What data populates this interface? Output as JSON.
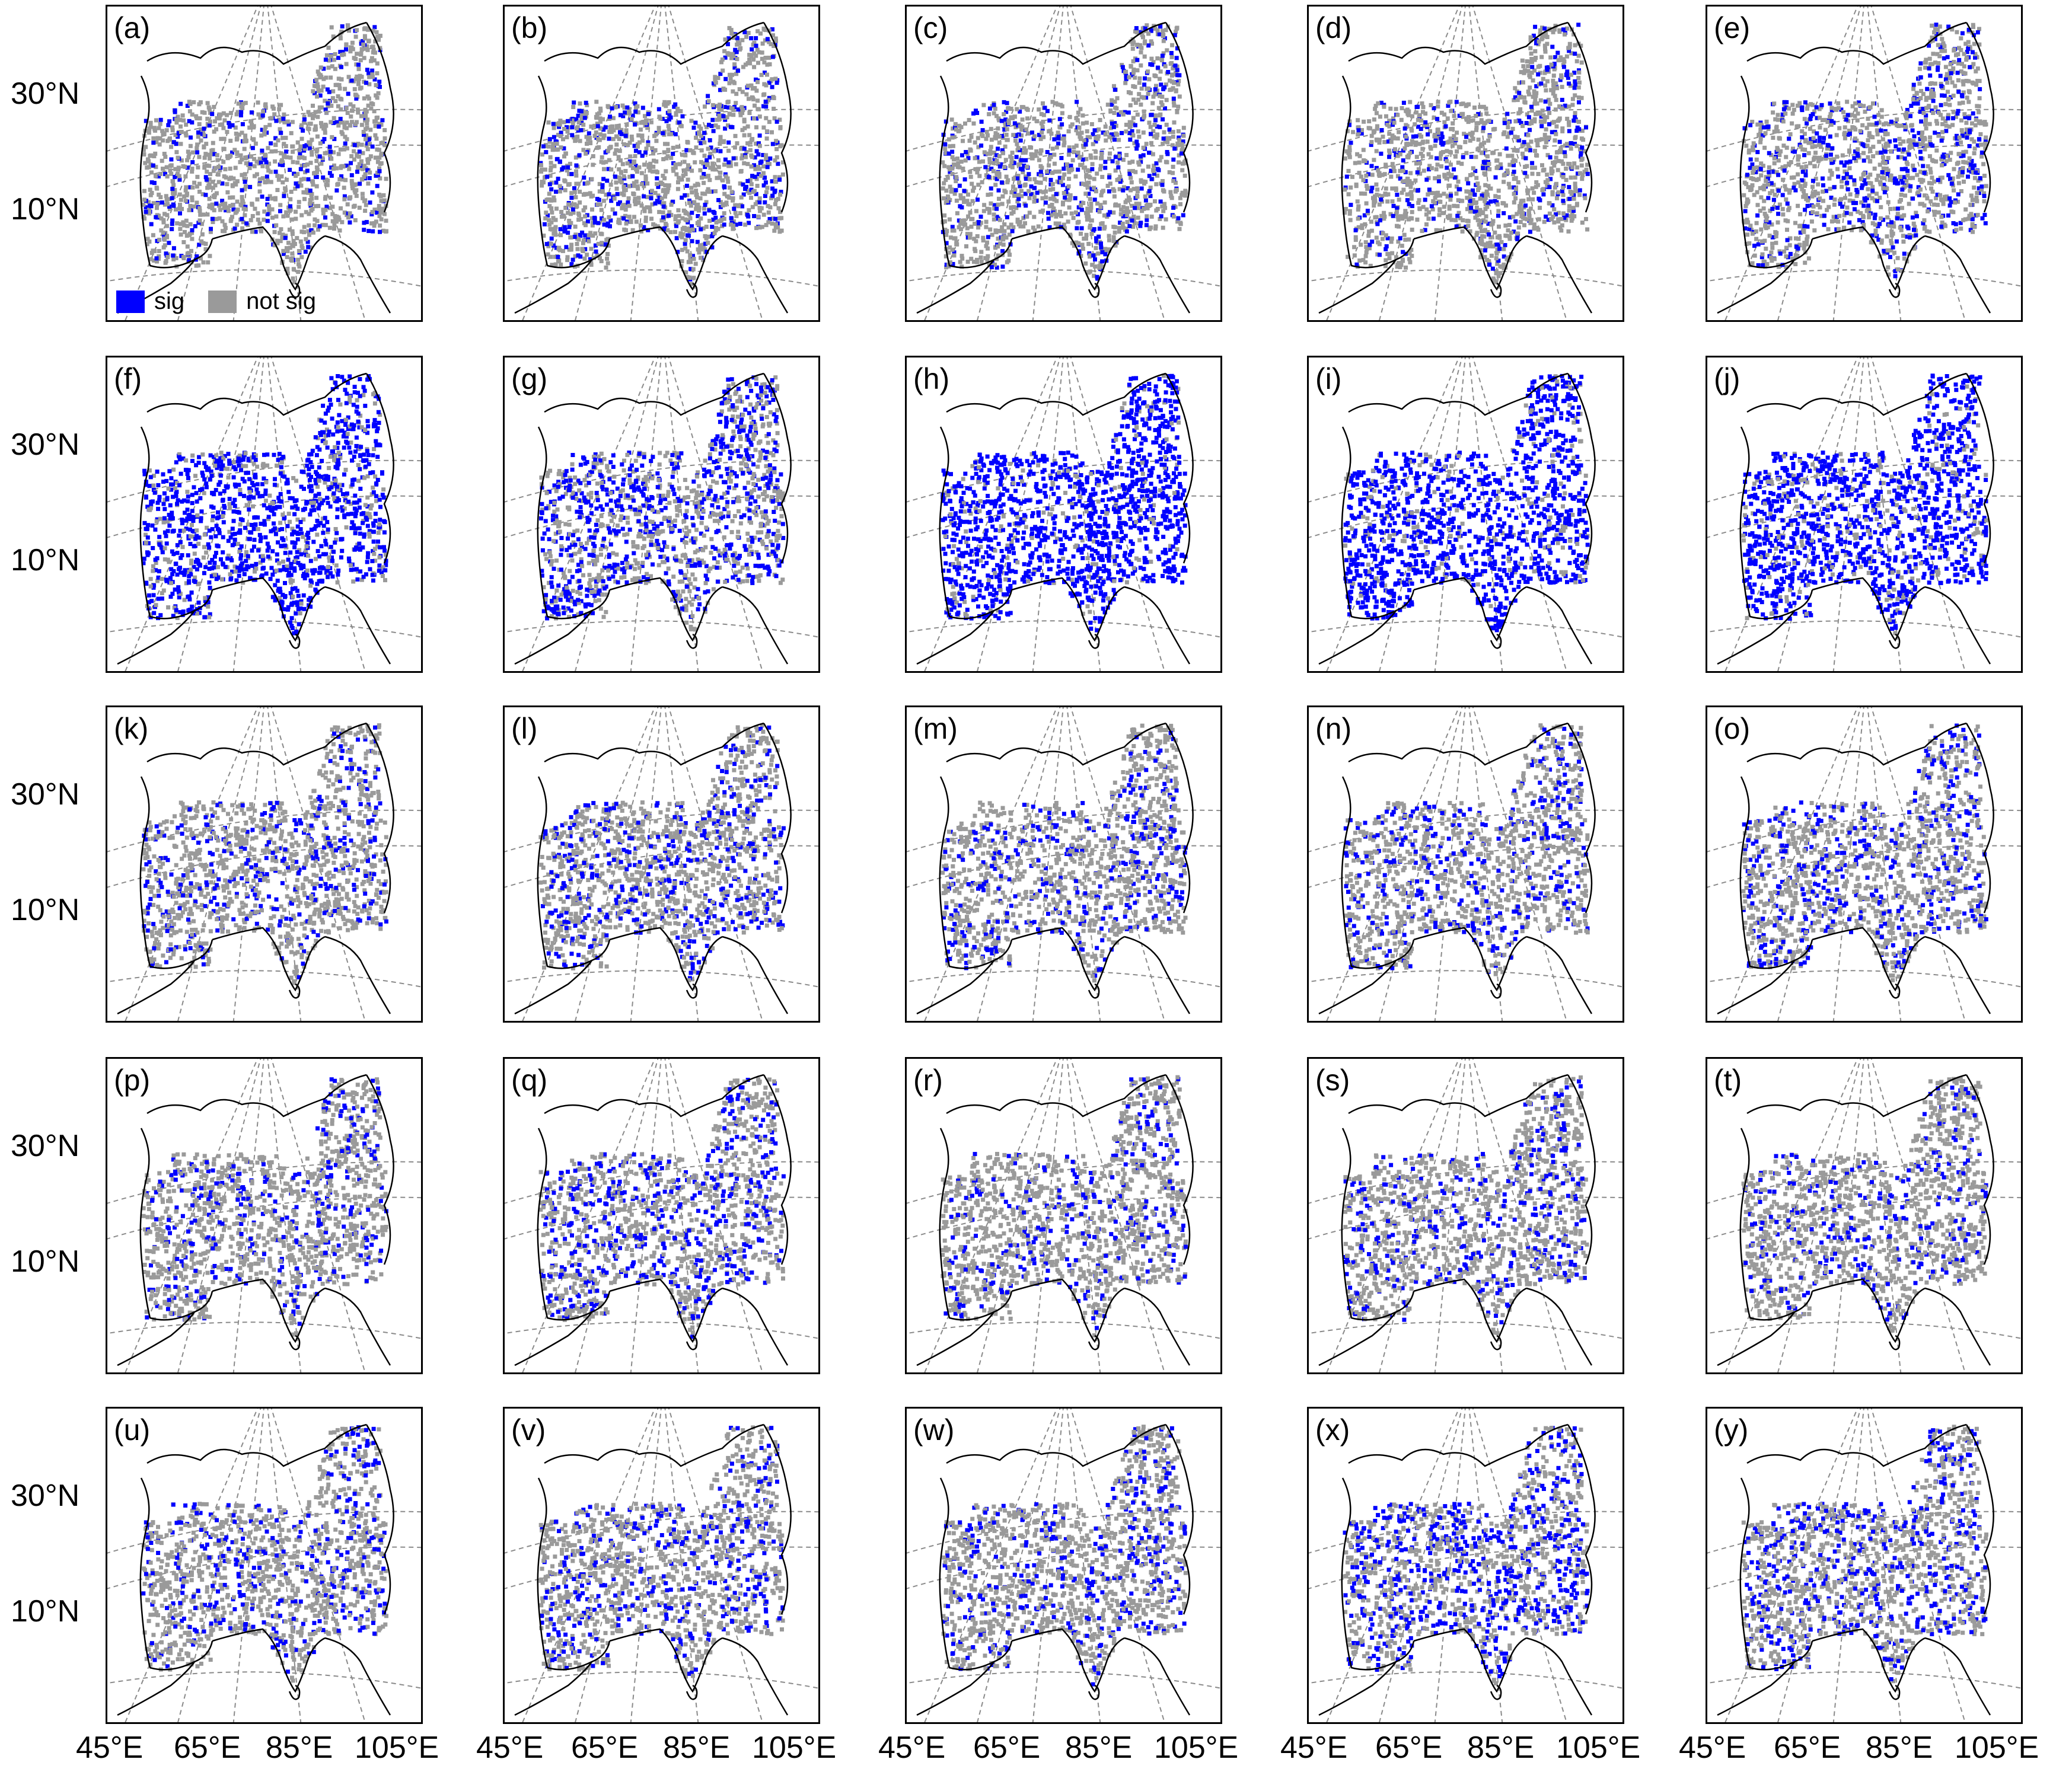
{
  "colors": {
    "significant": "#0000ff",
    "not_significant": "#9a9a9a",
    "frame": "#000000",
    "coast": "#000000",
    "graticule": "#8a8a8a"
  },
  "legend": {
    "sig_label": "sig",
    "not_sig_label": "not sig"
  },
  "axes": {
    "lat_labels": [
      "30°N",
      "10°N"
    ],
    "lon_labels": [
      "45°E",
      "65°E",
      "85°E",
      "105°E"
    ]
  },
  "map": {
    "projection": "conic",
    "graticule_style": "dashed",
    "layout": "5 rows × 5 columns"
  },
  "panels": [
    {
      "label": "(a)",
      "sig_level": 0.22
    },
    {
      "label": "(b)",
      "sig_level": 0.28
    },
    {
      "label": "(c)",
      "sig_level": 0.24
    },
    {
      "label": "(d)",
      "sig_level": 0.22
    },
    {
      "label": "(e)",
      "sig_level": 0.3
    },
    {
      "label": "(f)",
      "sig_level": 0.78
    },
    {
      "label": "(g)",
      "sig_level": 0.5
    },
    {
      "label": "(h)",
      "sig_level": 0.86
    },
    {
      "label": "(i)",
      "sig_level": 0.82
    },
    {
      "label": "(j)",
      "sig_level": 0.8
    },
    {
      "label": "(k)",
      "sig_level": 0.24
    },
    {
      "label": "(l)",
      "sig_level": 0.26
    },
    {
      "label": "(m)",
      "sig_level": 0.24
    },
    {
      "label": "(n)",
      "sig_level": 0.26
    },
    {
      "label": "(o)",
      "sig_level": 0.28
    },
    {
      "label": "(p)",
      "sig_level": 0.22
    },
    {
      "label": "(q)",
      "sig_level": 0.3
    },
    {
      "label": "(r)",
      "sig_level": 0.16
    },
    {
      "label": "(s)",
      "sig_level": 0.22
    },
    {
      "label": "(t)",
      "sig_level": 0.2
    },
    {
      "label": "(u)",
      "sig_level": 0.22
    },
    {
      "label": "(v)",
      "sig_level": 0.26
    },
    {
      "label": "(w)",
      "sig_level": 0.24
    },
    {
      "label": "(x)",
      "sig_level": 0.38
    },
    {
      "label": "(y)",
      "sig_level": 0.3
    }
  ]
}
